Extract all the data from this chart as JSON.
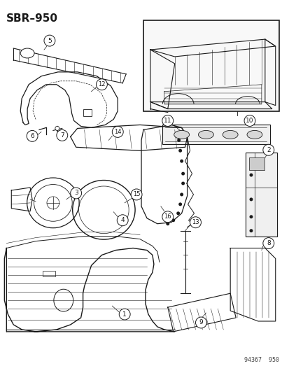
{
  "title": "SBR–950",
  "bg_color": "#ffffff",
  "line_color": "#1a1a1a",
  "footnote": "94367  950",
  "title_fontsize": 11
}
